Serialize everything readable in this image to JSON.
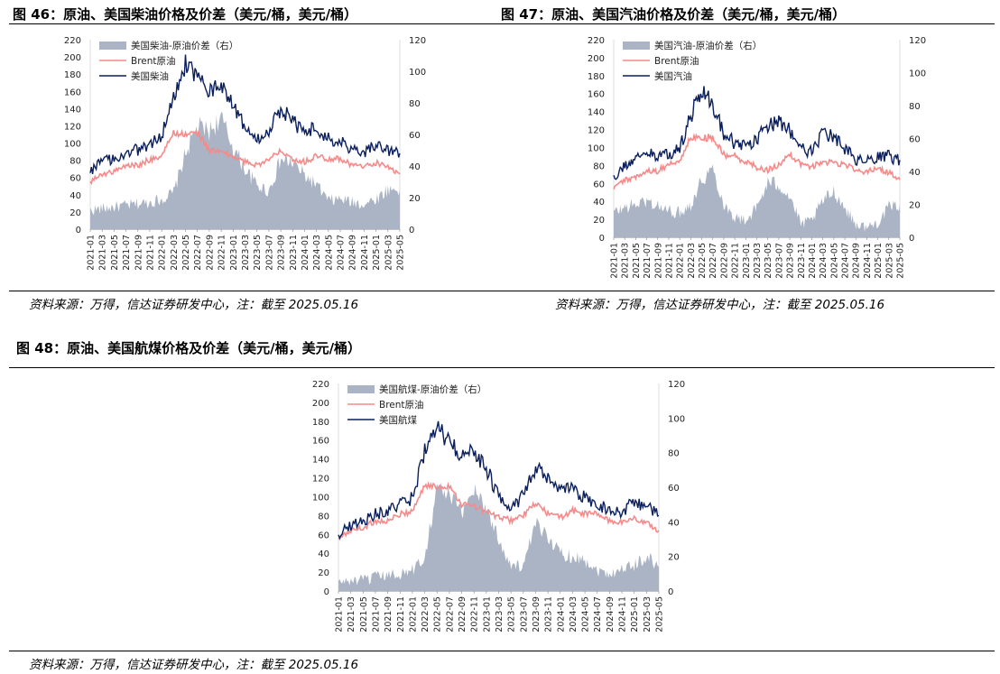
{
  "colors": {
    "spread": "#aab4c5",
    "brent": "#f58a8a",
    "product": "#0a1f5c",
    "rule": "#000000"
  },
  "figures": [
    {
      "title": "图 46：原油、美国柴油价格及价差（美元/桶，美元/桶）",
      "source": "资料来源：万得，信达证券研发中心，注：截至 2025.05.16"
    },
    {
      "title": "图 47：原油、美国汽油价格及价差（美元/桶，美元/桶）",
      "source": "资料来源：万得，信达证券研发中心，注：截至 2025.05.16"
    },
    {
      "title": "图 48：原油、美国航煤价格及价差（美元/桶，美元/桶）",
      "source": "资料来源：万得，信达证券研发中心，注：截至 2025.05.16"
    }
  ],
  "chart_data": [
    {
      "type": "line",
      "legend_position": "top-left",
      "x": [
        "2021-01",
        "2021-03",
        "2021-05",
        "2021-07",
        "2021-09",
        "2021-11",
        "2022-01",
        "2022-03",
        "2022-05",
        "2022-07",
        "2022-09",
        "2022-11",
        "2023-01",
        "2023-03",
        "2023-05",
        "2023-07",
        "2023-09",
        "2023-11",
        "2024-01",
        "2024-03",
        "2024-05",
        "2024-07",
        "2024-09",
        "2024-11",
        "2025-01",
        "2025-03",
        "2025-05"
      ],
      "ylim_left": [
        0,
        220
      ],
      "yticks_left": [
        0,
        20,
        40,
        60,
        80,
        100,
        120,
        140,
        160,
        180,
        200,
        220
      ],
      "ylim_right": [
        0,
        120
      ],
      "yticks_right": [
        0,
        20,
        40,
        60,
        80,
        100,
        120
      ],
      "series": [
        {
          "name": "美国柴油-原油价差（右）",
          "kind": "area",
          "axis": "right",
          "values": [
            12,
            13,
            14,
            15,
            16,
            17,
            19,
            23,
            48,
            65,
            62,
            70,
            52,
            38,
            28,
            24,
            44,
            42,
            34,
            28,
            18,
            19,
            17,
            16,
            19,
            25,
            25
          ]
        },
        {
          "name": "Brent原油",
          "kind": "line",
          "axis": "left",
          "values": [
            55,
            64,
            67,
            74,
            74,
            81,
            85,
            112,
            110,
            112,
            92,
            90,
            84,
            78,
            75,
            80,
            93,
            82,
            78,
            85,
            82,
            82,
            74,
            73,
            77,
            72,
            64
          ]
        },
        {
          "name": "美国柴油",
          "kind": "line",
          "axis": "left",
          "values": [
            68,
            78,
            82,
            90,
            92,
            100,
            108,
            155,
            192,
            175,
            160,
            165,
            145,
            120,
            105,
            115,
            140,
            125,
            112,
            118,
            105,
            102,
            92,
            90,
            98,
            90,
            88
          ]
        }
      ]
    },
    {
      "type": "line",
      "legend_position": "top-left",
      "x": [
        "2021-01",
        "2021-03",
        "2021-05",
        "2021-07",
        "2021-09",
        "2021-11",
        "2022-01",
        "2022-03",
        "2022-05",
        "2022-07",
        "2022-09",
        "2022-11",
        "2023-01",
        "2023-03",
        "2023-05",
        "2023-07",
        "2023-09",
        "2023-11",
        "2024-01",
        "2024-03",
        "2024-05",
        "2024-07",
        "2024-09",
        "2024-11",
        "2025-01",
        "2025-03",
        "2025-05"
      ],
      "ylim_left": [
        0,
        220
      ],
      "yticks_left": [
        0,
        20,
        40,
        60,
        80,
        100,
        120,
        140,
        160,
        180,
        200,
        220
      ],
      "ylim_right": [
        0,
        120
      ],
      "yticks_right": [
        0,
        20,
        40,
        60,
        80,
        100,
        120
      ],
      "series": [
        {
          "name": "美国汽油-原油价差（右）",
          "kind": "area",
          "axis": "right",
          "values": [
            15,
            18,
            20,
            22,
            19,
            16,
            15,
            20,
            35,
            42,
            20,
            12,
            10,
            18,
            33,
            32,
            25,
            8,
            10,
            22,
            28,
            18,
            8,
            6,
            9,
            18,
            20
          ]
        },
        {
          "name": "Brent原油",
          "kind": "line",
          "axis": "left",
          "values": [
            55,
            64,
            67,
            74,
            74,
            81,
            85,
            112,
            110,
            112,
            92,
            90,
            84,
            78,
            75,
            80,
            93,
            82,
            78,
            85,
            82,
            82,
            74,
            73,
            77,
            72,
            64
          ]
        },
        {
          "name": "美国汽油",
          "kind": "line",
          "axis": "left",
          "values": [
            65,
            80,
            88,
            95,
            90,
            92,
            100,
            135,
            165,
            150,
            115,
            105,
            100,
            110,
            125,
            128,
            120,
            98,
            96,
            115,
            112,
            98,
            86,
            84,
            88,
            90,
            86
          ]
        }
      ]
    },
    {
      "type": "line",
      "legend_position": "top-left",
      "x": [
        "2021-01",
        "2021-03",
        "2021-05",
        "2021-07",
        "2021-09",
        "2021-11",
        "2022-01",
        "2022-03",
        "2022-05",
        "2022-07",
        "2022-09",
        "2022-11",
        "2023-01",
        "2023-03",
        "2023-05",
        "2023-07",
        "2023-09",
        "2023-11",
        "2024-01",
        "2024-03",
        "2024-05",
        "2024-07",
        "2024-09",
        "2024-11",
        "2025-01",
        "2025-03",
        "2025-05"
      ],
      "ylim_left": [
        0,
        220
      ],
      "yticks_left": [
        0,
        20,
        40,
        60,
        80,
        100,
        120,
        140,
        160,
        180,
        200,
        220
      ],
      "ylim_right": [
        0,
        120
      ],
      "yticks_right": [
        0,
        20,
        40,
        60,
        80,
        100,
        120
      ],
      "series": [
        {
          "name": "美国航煤-原油价差（右）",
          "kind": "area",
          "axis": "right",
          "values": [
            5,
            6,
            6,
            8,
            9,
            10,
            12,
            20,
            60,
            55,
            45,
            60,
            48,
            30,
            15,
            14,
            38,
            32,
            22,
            20,
            18,
            12,
            10,
            13,
            15,
            20,
            14
          ]
        },
        {
          "name": "Brent原油",
          "kind": "line",
          "axis": "left",
          "values": [
            55,
            64,
            67,
            74,
            74,
            81,
            85,
            112,
            110,
            112,
            92,
            90,
            84,
            78,
            75,
            80,
            93,
            82,
            78,
            85,
            82,
            82,
            74,
            73,
            77,
            72,
            64
          ]
        },
        {
          "name": "美国航煤",
          "kind": "line",
          "axis": "left",
          "values": [
            60,
            70,
            74,
            82,
            84,
            92,
            98,
            150,
            170,
            160,
            140,
            150,
            130,
            100,
            90,
            100,
            130,
            118,
            105,
            110,
            98,
            92,
            86,
            84,
            95,
            90,
            80
          ]
        }
      ]
    }
  ]
}
